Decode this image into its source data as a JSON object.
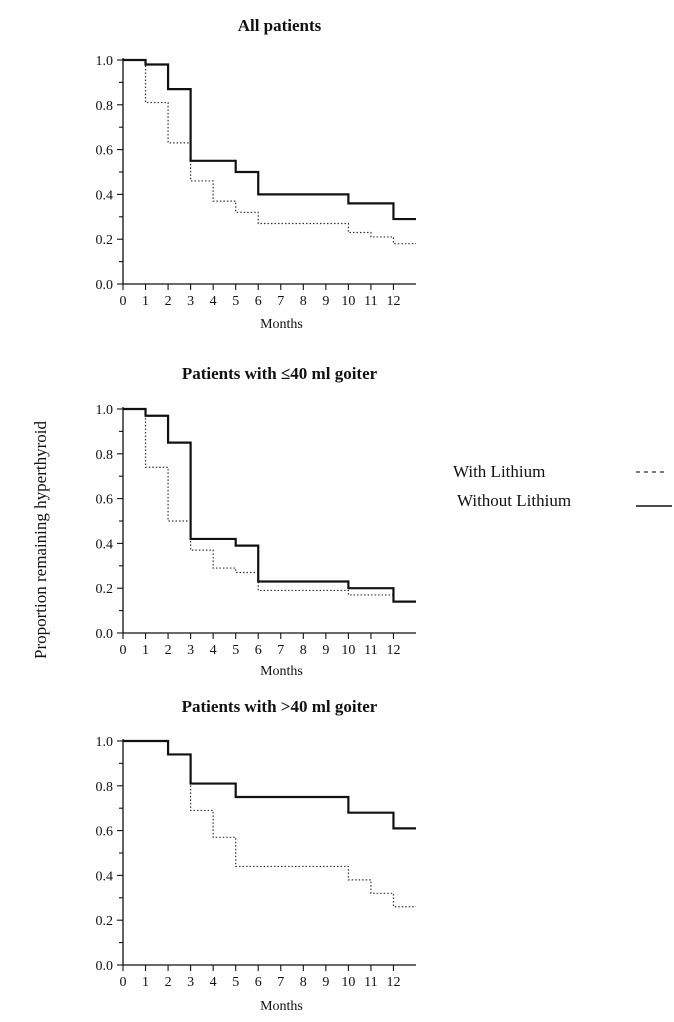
{
  "figure": {
    "ylabel": "Proportion remaining hyperthyroid",
    "legend": {
      "placement": "right",
      "items": [
        {
          "label": "With Lithium",
          "style": "dotted"
        },
        {
          "label": "Without Lithium",
          "style": "solid"
        }
      ]
    }
  },
  "chart_data": [
    {
      "type": "line",
      "title": "All patients",
      "xlabel": "Months",
      "ylabel": "Proportion remaining hyperthyroid",
      "xlim": [
        0,
        13
      ],
      "ylim": [
        0,
        1.0
      ],
      "xticks": [
        0,
        1,
        2,
        3,
        4,
        5,
        6,
        7,
        8,
        9,
        10,
        11,
        12
      ],
      "yticks": [
        "0.0",
        "0.2",
        "0.4",
        "0.6",
        "0.8",
        "1.0"
      ],
      "step": true,
      "series": [
        {
          "name": "With Lithium",
          "style": "dotted",
          "x": [
            0,
            1,
            2,
            3,
            4,
            5,
            6,
            10,
            11,
            12,
            13
          ],
          "y": [
            1.0,
            0.81,
            0.63,
            0.46,
            0.37,
            0.32,
            0.27,
            0.23,
            0.21,
            0.18,
            0.18
          ]
        },
        {
          "name": "Without Lithium",
          "style": "solid",
          "x": [
            0,
            1,
            2,
            3,
            5,
            6,
            10,
            12,
            13
          ],
          "y": [
            1.0,
            0.98,
            0.87,
            0.55,
            0.5,
            0.4,
            0.36,
            0.29,
            0.29
          ]
        }
      ]
    },
    {
      "type": "line",
      "title": "Patients with ≤40 ml goiter",
      "xlabel": "Months",
      "ylabel": "Proportion remaining hyperthyroid",
      "xlim": [
        0,
        13
      ],
      "ylim": [
        0,
        1.0
      ],
      "xticks": [
        0,
        1,
        2,
        3,
        4,
        5,
        6,
        7,
        8,
        9,
        10,
        11,
        12
      ],
      "yticks": [
        "0.0",
        "0.2",
        "0.4",
        "0.6",
        "0.8",
        "1.0"
      ],
      "step": true,
      "series": [
        {
          "name": "With Lithium",
          "style": "dotted",
          "x": [
            0,
            1,
            2,
            3,
            4,
            5,
            6,
            10,
            12,
            13
          ],
          "y": [
            1.0,
            0.74,
            0.5,
            0.37,
            0.29,
            0.27,
            0.19,
            0.17,
            0.14,
            0.14
          ]
        },
        {
          "name": "Without Lithium",
          "style": "solid",
          "x": [
            0,
            1,
            2,
            3,
            5,
            6,
            10,
            12,
            13
          ],
          "y": [
            1.0,
            0.97,
            0.85,
            0.42,
            0.39,
            0.23,
            0.2,
            0.14,
            0.14
          ]
        }
      ]
    },
    {
      "type": "line",
      "title": "Patients with >40 ml goiter",
      "xlabel": "Months",
      "ylabel": "Proportion remaining hyperthyroid",
      "xlim": [
        0,
        13
      ],
      "ylim": [
        0,
        1.0
      ],
      "xticks": [
        0,
        1,
        2,
        3,
        4,
        5,
        6,
        7,
        8,
        9,
        10,
        11,
        12
      ],
      "yticks": [
        "0.0",
        "0.2",
        "0.4",
        "0.6",
        "0.8",
        "1.0"
      ],
      "step": true,
      "series": [
        {
          "name": "With Lithium",
          "style": "dotted",
          "x": [
            0,
            2,
            3,
            4,
            5,
            10,
            11,
            12,
            13
          ],
          "y": [
            1.0,
            0.94,
            0.69,
            0.57,
            0.44,
            0.38,
            0.32,
            0.26,
            0.26
          ]
        },
        {
          "name": "Without Lithium",
          "style": "solid",
          "x": [
            0,
            2,
            3,
            5,
            10,
            12,
            13
          ],
          "y": [
            1.0,
            0.94,
            0.81,
            0.75,
            0.68,
            0.61,
            0.61
          ]
        }
      ]
    }
  ]
}
